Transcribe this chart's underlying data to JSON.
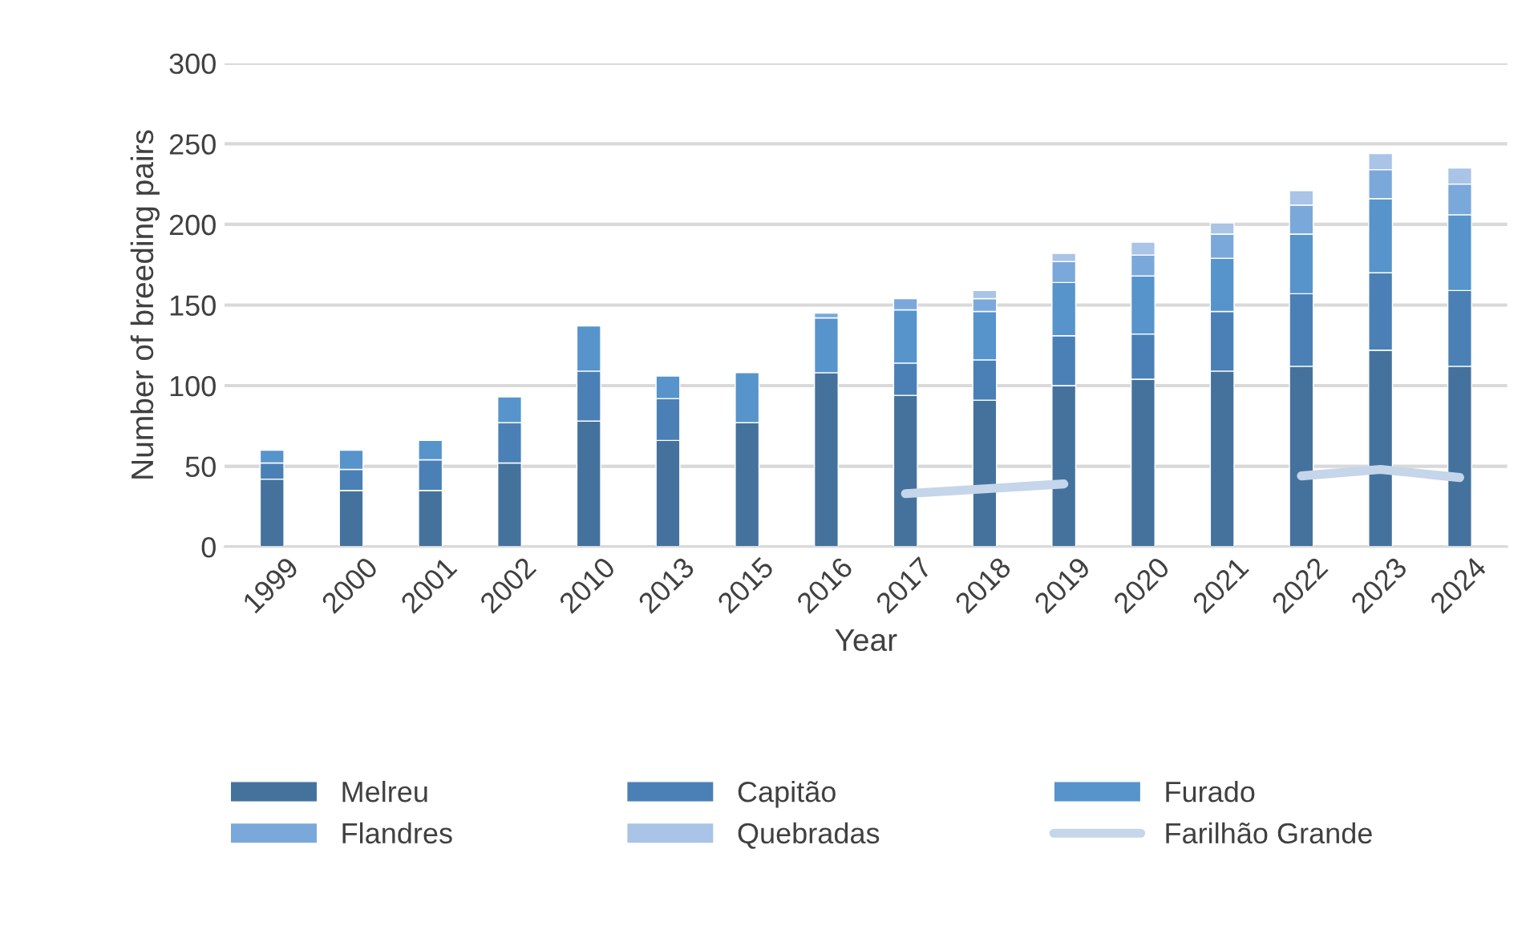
{
  "chart_data": {
    "type": "bar",
    "stacked": true,
    "xlabel": "Year",
    "ylabel": "Number of breeding pairs",
    "categories": [
      "1999",
      "2000",
      "2001",
      "2002",
      "2010",
      "2013",
      "2015",
      "2016",
      "2017",
      "2018",
      "2019",
      "2020",
      "2021",
      "2022",
      "2023",
      "2024"
    ],
    "series": [
      {
        "name": "Melreu",
        "color": "#44729d",
        "values": [
          42,
          35,
          35,
          52,
          78,
          66,
          77,
          108,
          94,
          91,
          100,
          104,
          109,
          112,
          122,
          112
        ]
      },
      {
        "name": "Capitão",
        "color": "#4a80b5",
        "values": [
          10,
          13,
          19,
          25,
          31,
          26,
          null,
          null,
          20,
          25,
          31,
          28,
          37,
          45,
          48,
          47
        ]
      },
      {
        "name": "Furado",
        "color": "#5694cb",
        "values": [
          8,
          12,
          12,
          16,
          28,
          14,
          31,
          34,
          33,
          30,
          33,
          36,
          33,
          37,
          46,
          47
        ]
      },
      {
        "name": "Flandres",
        "color": "#7ba8da",
        "values": [
          null,
          null,
          null,
          null,
          null,
          null,
          null,
          3,
          7,
          8,
          13,
          13,
          15,
          18,
          18,
          19
        ]
      },
      {
        "name": "Quebradas",
        "color": "#a9c4e6",
        "values": [
          null,
          null,
          null,
          null,
          null,
          null,
          null,
          null,
          null,
          5,
          5,
          8,
          7,
          9,
          10,
          10
        ]
      },
      {
        "name": "Farilhão Grande",
        "color": "#c5d5ea",
        "type": "line",
        "values": [
          null,
          null,
          null,
          null,
          null,
          null,
          null,
          null,
          33,
          36,
          39,
          null,
          null,
          44,
          48,
          43
        ]
      }
    ],
    "ylim": [
      0,
      300
    ],
    "yticks": [
      0,
      50,
      100,
      150,
      200,
      250,
      300
    ],
    "grid": "y",
    "legend": "bottom"
  }
}
